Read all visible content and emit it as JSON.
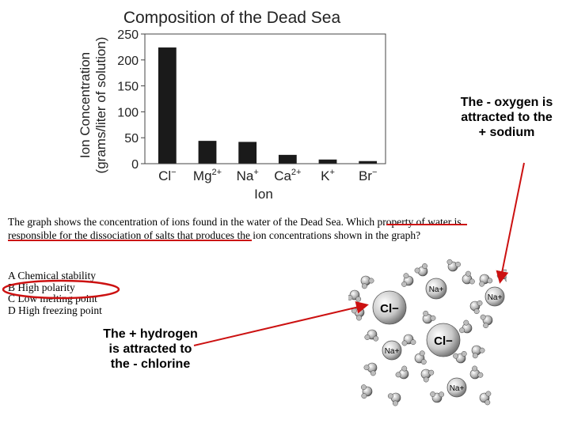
{
  "chart_data": {
    "type": "bar",
    "title": "Composition of the Dead Sea",
    "ylabel": "Ion Concentration (grams/liter of solution)",
    "ylabel_lines": [
      "Ion Concentration",
      "(grams/liter of solution)"
    ],
    "xlabel": "Ion",
    "categories": [
      {
        "base": "Cl",
        "sup": "−"
      },
      {
        "base": "Mg",
        "sup": "2+"
      },
      {
        "base": "Na",
        "sup": "+"
      },
      {
        "base": "Ca",
        "sup": "2+"
      },
      {
        "base": "K",
        "sup": "+"
      },
      {
        "base": "Br",
        "sup": "−"
      }
    ],
    "values": [
      224,
      44,
      42,
      17,
      8,
      5
    ],
    "ylim": [
      0,
      250
    ],
    "yticks": [
      0,
      50,
      100,
      150,
      200,
      250
    ],
    "grid": false,
    "bar_color": "#1a1a1a"
  },
  "question": {
    "text": "The graph shows the concentration of ions found in the water of the Dead Sea. Which property of water is responsible for the dissociation of salts that produces the ion concentrations shown in the graph?",
    "options": [
      "A Chemical stability",
      "B High polarity",
      "C Low melting point",
      "D High freezing point"
    ]
  },
  "annotations": {
    "right_note": "The - oxygen is attracted to the + sodium",
    "left_note": "The + hydrogen is attracted to the - chlorine",
    "accent_color": "#cc1111"
  },
  "diagram": {
    "labels": [
      "Na+",
      "Cl−",
      "Na+",
      "Cl−",
      "Na+",
      "Na+"
    ]
  }
}
